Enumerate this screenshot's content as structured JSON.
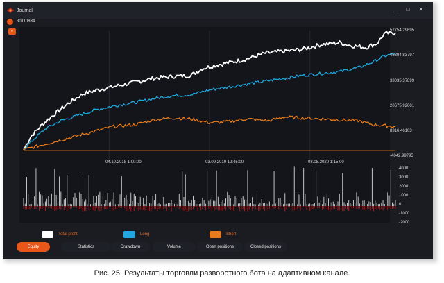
{
  "window": {
    "title": "Journal",
    "minimize": "_",
    "maximize": "□",
    "close": "✕"
  },
  "account": {
    "id": "30110834"
  },
  "chart_data": [
    {
      "type": "line",
      "series": [
        {
          "name": "Total profit",
          "color": "#ffffff",
          "points": [
            [
              0,
              -4000
            ],
            [
              0.02,
              3000
            ],
            [
              0.05,
              9000
            ],
            [
              0.08,
              14000
            ],
            [
              0.12,
              20000
            ],
            [
              0.16,
              25000
            ],
            [
              0.2,
              27000
            ],
            [
              0.25,
              29000
            ],
            [
              0.3,
              31000
            ],
            [
              0.35,
              33000
            ],
            [
              0.4,
              34000
            ],
            [
              0.45,
              34500
            ],
            [
              0.48,
              38000
            ],
            [
              0.52,
              40000
            ],
            [
              0.55,
              41000
            ],
            [
              0.6,
              43000
            ],
            [
              0.65,
              46000
            ],
            [
              0.7,
              47000
            ],
            [
              0.75,
              48000
            ],
            [
              0.8,
              50500
            ],
            [
              0.85,
              51500
            ],
            [
              0.88,
              50000
            ],
            [
              0.92,
              49000
            ],
            [
              0.95,
              51000
            ],
            [
              0.97,
              56000
            ],
            [
              1,
              56500
            ]
          ]
        },
        {
          "name": "Long",
          "color": "#1fa8e0",
          "points": [
            [
              0,
              -4000
            ],
            [
              0.03,
              2000
            ],
            [
              0.06,
              7000
            ],
            [
              0.1,
              11000
            ],
            [
              0.15,
              14000
            ],
            [
              0.2,
              17000
            ],
            [
              0.25,
              19000
            ],
            [
              0.3,
              20500
            ],
            [
              0.35,
              22500
            ],
            [
              0.4,
              24000
            ],
            [
              0.45,
              24500
            ],
            [
              0.5,
              27000
            ],
            [
              0.55,
              28500
            ],
            [
              0.6,
              30000
            ],
            [
              0.65,
              31500
            ],
            [
              0.7,
              33000
            ],
            [
              0.75,
              34500
            ],
            [
              0.8,
              35500
            ],
            [
              0.85,
              36500
            ],
            [
              0.9,
              38500
            ],
            [
              0.94,
              41500
            ],
            [
              0.97,
              44500
            ],
            [
              1,
              46000
            ]
          ]
        },
        {
          "name": "Short",
          "color": "#e87b1a",
          "points": [
            [
              0,
              -4000
            ],
            [
              0.04,
              -2000
            ],
            [
              0.08,
              0
            ],
            [
              0.12,
              2000
            ],
            [
              0.18,
              5000
            ],
            [
              0.24,
              8000
            ],
            [
              0.3,
              9000
            ],
            [
              0.35,
              11500
            ],
            [
              0.4,
              12500
            ],
            [
              0.45,
              12000
            ],
            [
              0.5,
              10000
            ],
            [
              0.55,
              10500
            ],
            [
              0.6,
              12000
            ],
            [
              0.66,
              11000
            ],
            [
              0.7,
              13000
            ],
            [
              0.75,
              12500
            ],
            [
              0.8,
              12000
            ],
            [
              0.85,
              11500
            ],
            [
              0.9,
              11000
            ],
            [
              0.94,
              9000
            ],
            [
              0.97,
              8500
            ],
            [
              1,
              8000
            ]
          ]
        }
      ],
      "y_ticks": [
        "57754,29695",
        "45394,83797",
        "33035,37899",
        "20675,92001",
        "8316,46103",
        "-4042,99795"
      ],
      "x_ticks": [
        "04.10.2018 1:00:00",
        "03.09.2019 12:45:00",
        "08.08.2020 1:15:00"
      ],
      "ylim": [
        -4042.99795,
        57754.29695
      ]
    },
    {
      "type": "bar",
      "y_ticks": [
        "4000",
        "3000",
        "2000",
        "1000",
        "0",
        "-1000",
        "-2000"
      ],
      "ylim": [
        -2000,
        4000
      ],
      "positive_color": "#d8d8d8",
      "negative_color": "#c01818"
    }
  ],
  "legend": [
    {
      "label": "Total profit",
      "color": "#ffffff"
    },
    {
      "label": "Long",
      "color": "#1fa8e0"
    },
    {
      "label": "Short",
      "color": "#e87b1a"
    }
  ],
  "tabs": [
    "Equity",
    "Statistics",
    "Drawdown",
    "Volume",
    "Open positions",
    "Closed positions"
  ],
  "caption": "Рис. 25. Результаты торговли разворотного бота на адаптивном канале."
}
